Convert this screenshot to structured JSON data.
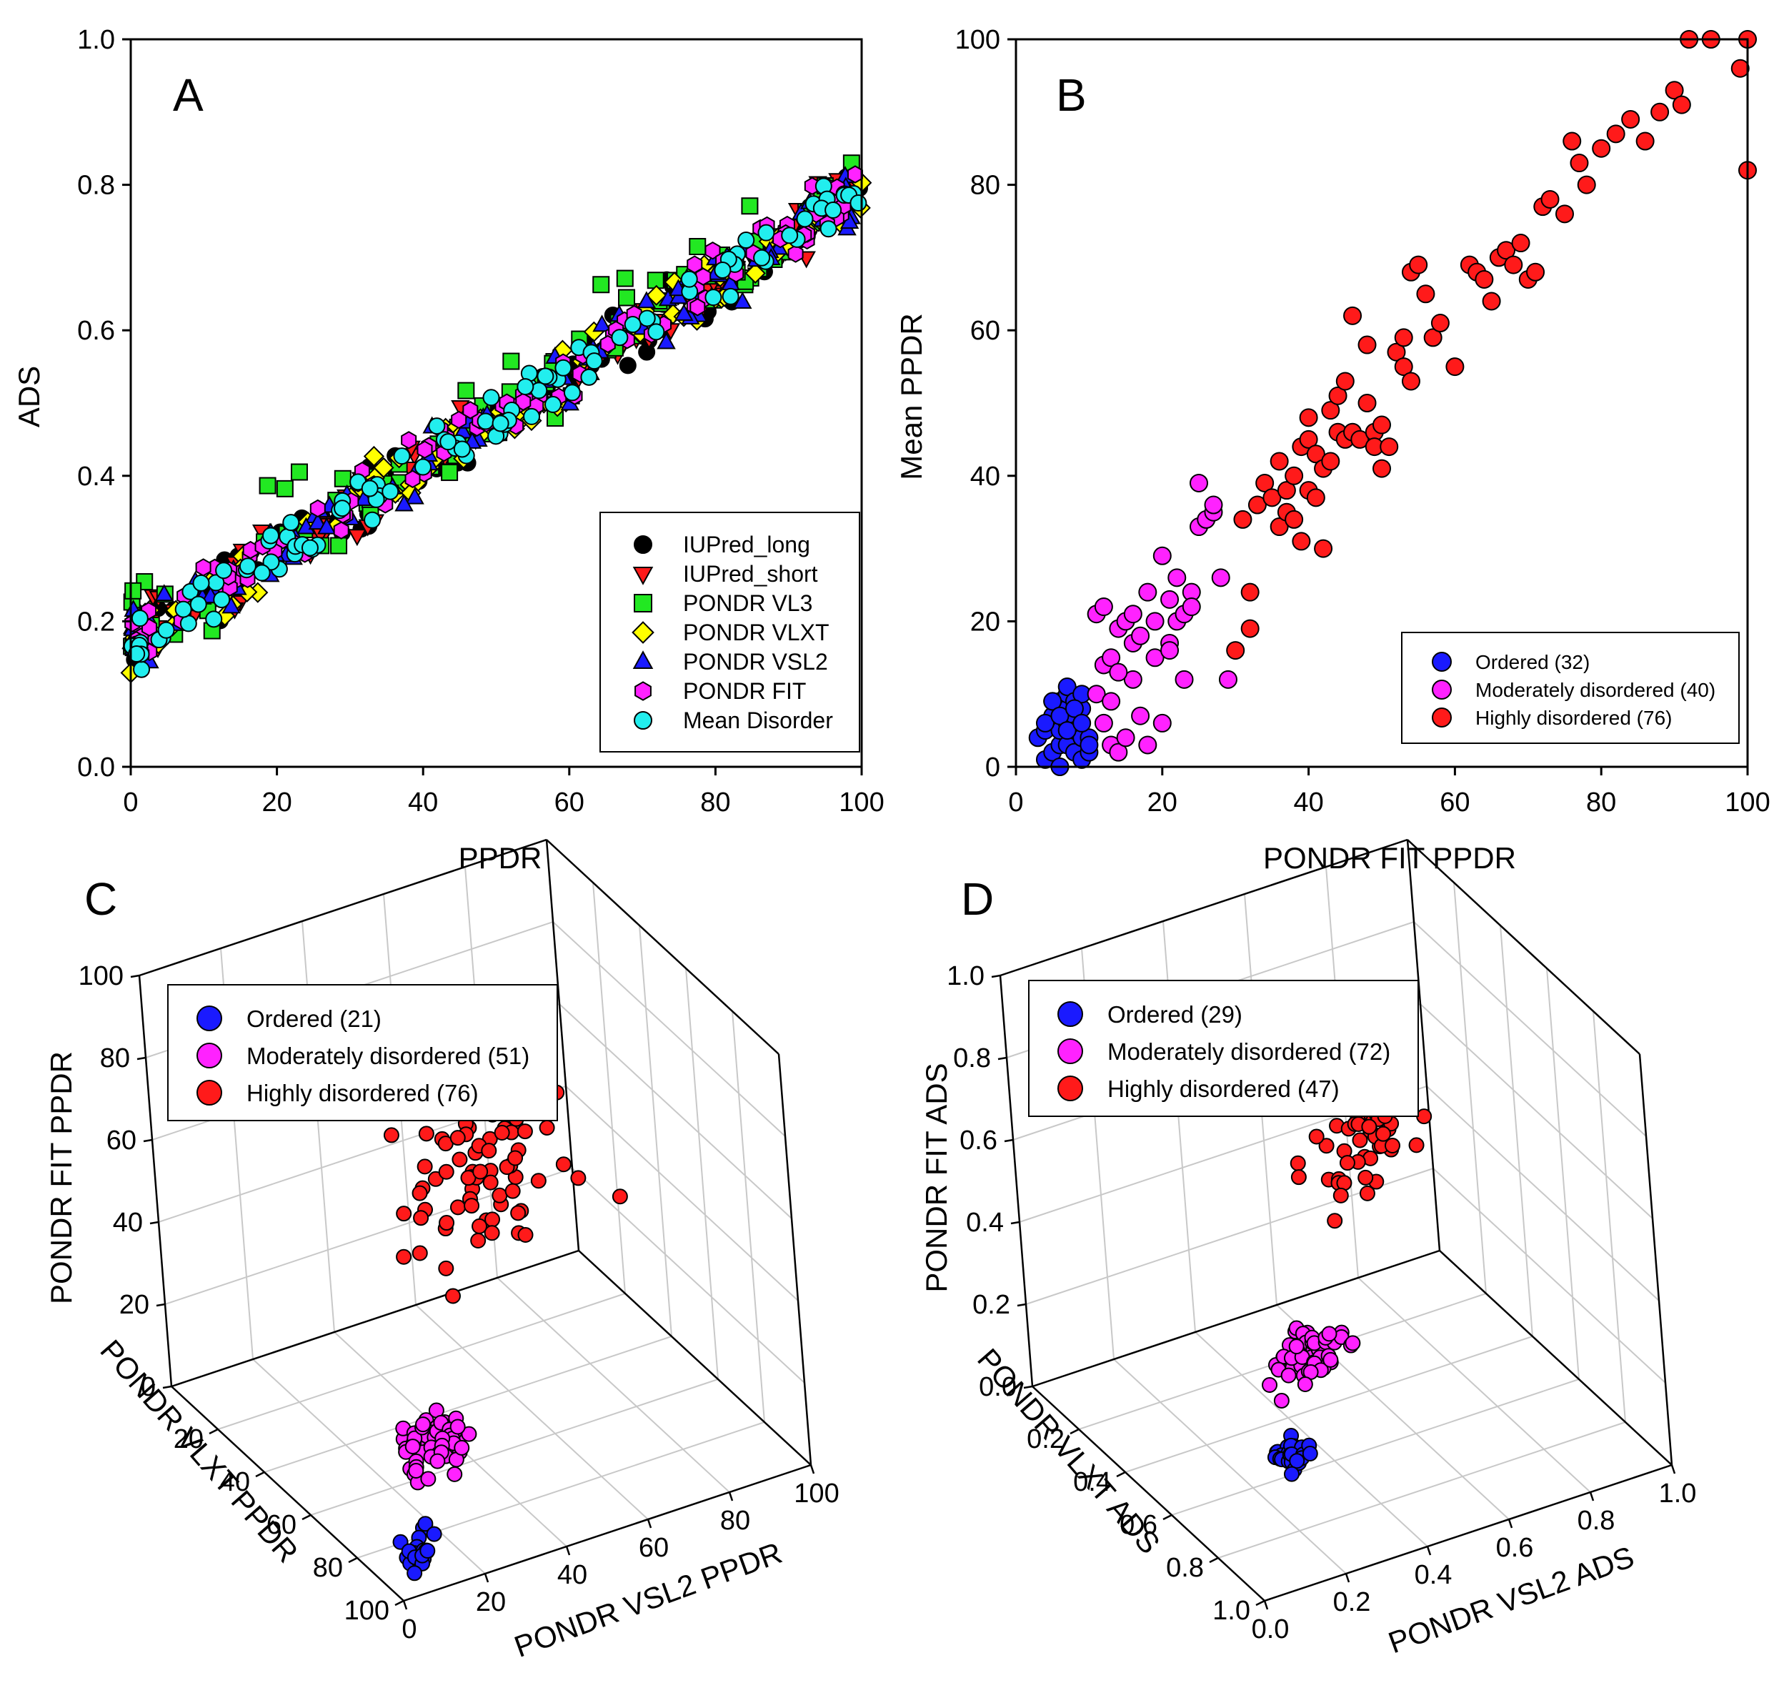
{
  "figure": {
    "panels": [
      "A",
      "B",
      "C",
      "D"
    ]
  },
  "colors": {
    "black": "#000000",
    "red": "#ff1a1a",
    "green": "#22e822",
    "yellow": "#ffff00",
    "blue": "#1a1aff",
    "magenta": "#ff22ff",
    "cyan": "#22eeee",
    "grid": "#c8c8c8"
  },
  "chart_data": [
    {
      "panel": "A",
      "type": "scatter",
      "title": "",
      "xlabel": "PPDR",
      "ylabel": "ADS",
      "xlim": [
        0,
        100
      ],
      "ylim": [
        0,
        1
      ],
      "xticks": [
        0,
        20,
        40,
        60,
        80,
        100
      ],
      "yticks": [
        "0.0",
        "0.2",
        "0.4",
        "0.6",
        "0.8",
        "1.0"
      ],
      "trend": {
        "intercept": 0.17,
        "slope": 0.0062,
        "spread": 0.06,
        "points_per_series": 110
      },
      "series": [
        {
          "name": "IUPred_long",
          "marker": "circle",
          "color": "#000000"
        },
        {
          "name": "IUPred_short",
          "marker": "triangle-down",
          "color": "#ff1a1a"
        },
        {
          "name": "PONDR VL3",
          "marker": "square",
          "color": "#22e822"
        },
        {
          "name": "PONDR VLXT",
          "marker": "diamond",
          "color": "#ffff00"
        },
        {
          "name": "PONDR VSL2",
          "marker": "triangle-up",
          "color": "#1a1aff"
        },
        {
          "name": "PONDR FIT",
          "marker": "hexagon",
          "color": "#ff22ff"
        },
        {
          "name": "Mean Disorder",
          "marker": "circle",
          "color": "#22eeee"
        }
      ],
      "legend": "bottom-right"
    },
    {
      "panel": "B",
      "type": "scatter",
      "title": "",
      "xlabel": "PONDR FIT PPDR",
      "ylabel": "Mean PPDR",
      "xlim": [
        0,
        100
      ],
      "ylim": [
        0,
        100
      ],
      "xticks": [
        0,
        20,
        40,
        60,
        80,
        100
      ],
      "yticks": [
        0,
        20,
        40,
        60,
        80,
        100
      ],
      "series": [
        {
          "name": "Ordered (32)",
          "color": "#1a1aff",
          "x": [
            3,
            4,
            4,
            5,
            5,
            5,
            6,
            6,
            6,
            6,
            7,
            7,
            7,
            7,
            7,
            8,
            8,
            8,
            8,
            9,
            9,
            9,
            9,
            10,
            10,
            4,
            5,
            6,
            7,
            8,
            9,
            10
          ],
          "y": [
            4,
            1,
            5,
            2,
            7,
            9,
            0,
            3,
            5,
            9,
            6,
            8,
            10,
            11,
            3,
            2,
            7,
            9,
            5,
            1,
            4,
            8,
            10,
            4,
            2,
            6,
            9,
            7,
            5,
            8,
            6,
            3
          ]
        },
        {
          "name": "Moderately disordered (40)",
          "color": "#ff22ff",
          "x": [
            11,
            11,
            12,
            12,
            12,
            13,
            13,
            13,
            14,
            14,
            15,
            15,
            16,
            16,
            17,
            17,
            18,
            18,
            19,
            19,
            20,
            20,
            21,
            21,
            22,
            22,
            23,
            23,
            24,
            24,
            25,
            25,
            26,
            27,
            27,
            28,
            29,
            14,
            16,
            21
          ],
          "y": [
            21,
            10,
            14,
            6,
            22,
            15,
            9,
            3,
            2,
            19,
            20,
            4,
            17,
            12,
            7,
            18,
            24,
            3,
            20,
            15,
            29,
            6,
            23,
            17,
            26,
            20,
            21,
            12,
            24,
            22,
            39,
            33,
            34,
            35,
            36,
            26,
            12,
            13,
            21,
            16
          ]
        },
        {
          "name": "Highly disordered (76)",
          "color": "#ff1a1a",
          "x": [
            30,
            31,
            32,
            32,
            33,
            34,
            35,
            36,
            36,
            37,
            37,
            38,
            38,
            39,
            39,
            40,
            40,
            40,
            41,
            41,
            42,
            42,
            43,
            43,
            44,
            44,
            45,
            45,
            46,
            46,
            47,
            48,
            48,
            49,
            49,
            50,
            50,
            51,
            52,
            53,
            53,
            54,
            54,
            55,
            56,
            57,
            58,
            60,
            62,
            63,
            64,
            65,
            66,
            67,
            68,
            69,
            70,
            71,
            72,
            73,
            75,
            76,
            77,
            78,
            80,
            82,
            84,
            86,
            88,
            90,
            91,
            92,
            95,
            99,
            100,
            100
          ],
          "y": [
            16,
            34,
            19,
            24,
            36,
            39,
            37,
            33,
            42,
            38,
            35,
            40,
            34,
            44,
            31,
            48,
            45,
            38,
            37,
            43,
            41,
            30,
            42,
            49,
            46,
            51,
            53,
            45,
            62,
            46,
            45,
            50,
            58,
            46,
            44,
            41,
            47,
            44,
            57,
            59,
            55,
            53,
            68,
            69,
            65,
            59,
            61,
            55,
            69,
            68,
            67,
            64,
            70,
            71,
            69,
            72,
            67,
            68,
            77,
            78,
            76,
            86,
            83,
            80,
            85,
            87,
            89,
            86,
            90,
            93,
            91,
            100,
            100,
            96,
            100,
            82
          ]
        }
      ],
      "legend": "bottom-right"
    },
    {
      "panel": "C",
      "type": "scatter",
      "projection": "3d",
      "title": "",
      "xlabel": "PONDR VSL2 PPDR",
      "ylabel": "PONDR VLXT PPDR",
      "zlabel": "PONDR FIT PPDR",
      "xlim": [
        0,
        100
      ],
      "ylim": [
        0,
        100
      ],
      "zlim": [
        0,
        100
      ],
      "xticks": [
        0,
        20,
        40,
        60,
        80,
        100
      ],
      "yticks": [
        20,
        40,
        60,
        80,
        100
      ],
      "zticks": [
        0,
        20,
        40,
        60,
        80,
        100
      ],
      "series": [
        {
          "name": "Ordered (21)",
          "color": "#1a1aff",
          "count": 21,
          "center": [
            8,
            8,
            5
          ],
          "spread": [
            6,
            6,
            4
          ]
        },
        {
          "name": "Moderately disordered (51)",
          "color": "#ff22ff",
          "count": 51,
          "center": [
            22,
            22,
            20
          ],
          "spread": [
            12,
            12,
            8
          ]
        },
        {
          "name": "Highly disordered (76)",
          "color": "#ff1a1a",
          "count": 76,
          "center": [
            60,
            60,
            55
          ],
          "spread": [
            28,
            28,
            25
          ]
        }
      ],
      "legend": "top-left"
    },
    {
      "panel": "D",
      "type": "scatter",
      "projection": "3d",
      "title": "",
      "xlabel": "PONDR VSL2 ADS",
      "ylabel": "PONDR VLXT ADS",
      "zlabel": "PONDR FIT ADS",
      "xlim": [
        0,
        1
      ],
      "ylim": [
        0,
        1
      ],
      "zlim": [
        0,
        1
      ],
      "xticks": [
        "0.0",
        "0.2",
        "0.4",
        "0.6",
        "0.8",
        "1.0"
      ],
      "yticks": [
        "0.2",
        "0.4",
        "0.6",
        "0.8",
        "1.0"
      ],
      "zticks": [
        "0.0",
        "0.2",
        "0.4",
        "0.6",
        "0.8",
        "1.0"
      ],
      "series": [
        {
          "name": "Ordered (29)",
          "color": "#1a1aff",
          "count": 29,
          "center": [
            0.18,
            0.18,
            0.2
          ],
          "spread": [
            0.06,
            0.06,
            0.04
          ]
        },
        {
          "name": "Moderately disordered (72)",
          "color": "#ff22ff",
          "count": 72,
          "center": [
            0.32,
            0.32,
            0.33
          ],
          "spread": [
            0.1,
            0.1,
            0.06
          ]
        },
        {
          "name": "Highly disordered (47)",
          "color": "#ff1a1a",
          "count": 47,
          "center": [
            0.6,
            0.6,
            0.6
          ],
          "spread": [
            0.2,
            0.2,
            0.15
          ]
        }
      ],
      "legend": "top-left"
    }
  ]
}
